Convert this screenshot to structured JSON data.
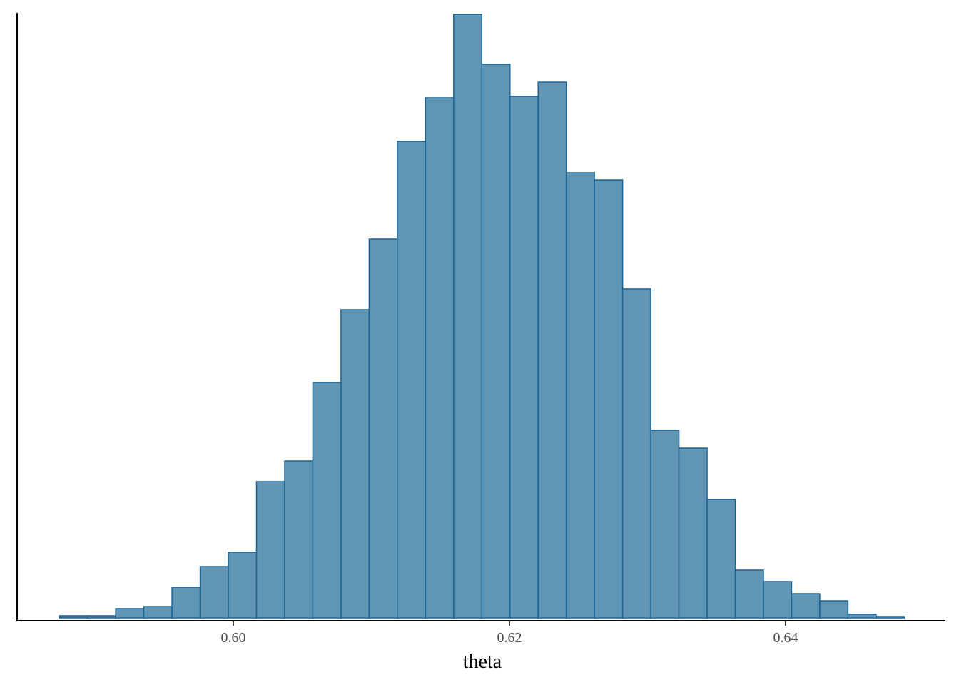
{
  "chart_data": {
    "type": "histogram",
    "x_label": "theta",
    "bins": [
      0.5874,
      0.58944,
      0.59148,
      0.59352,
      0.59556,
      0.5976,
      0.59964,
      0.60168,
      0.60372,
      0.60576,
      0.6078,
      0.60984,
      0.61188,
      0.61392,
      0.61596,
      0.618,
      0.62004,
      0.62208,
      0.62412,
      0.62616,
      0.6282,
      0.63024,
      0.63228,
      0.63432,
      0.63636,
      0.6384,
      0.64044,
      0.64248,
      0.64452,
      0.64656,
      0.6486
    ],
    "values": [
      3,
      3,
      13,
      16,
      43,
      72,
      92,
      191,
      220,
      330,
      432,
      531,
      668,
      729,
      846,
      776,
      731,
      751,
      624,
      614,
      461,
      263,
      238,
      166,
      67,
      51,
      34,
      24,
      5,
      2
    ],
    "color": "#6096b4",
    "edge_color": "#1a6496",
    "xlim": [
      0.58434,
      0.65158
    ],
    "ylim": [
      0,
      846
    ],
    "xticks": [
      {
        "value": 0.6,
        "label": "0.60"
      },
      {
        "value": 0.62,
        "label": "0.62"
      },
      {
        "value": 0.64,
        "label": "0.64"
      }
    ]
  }
}
